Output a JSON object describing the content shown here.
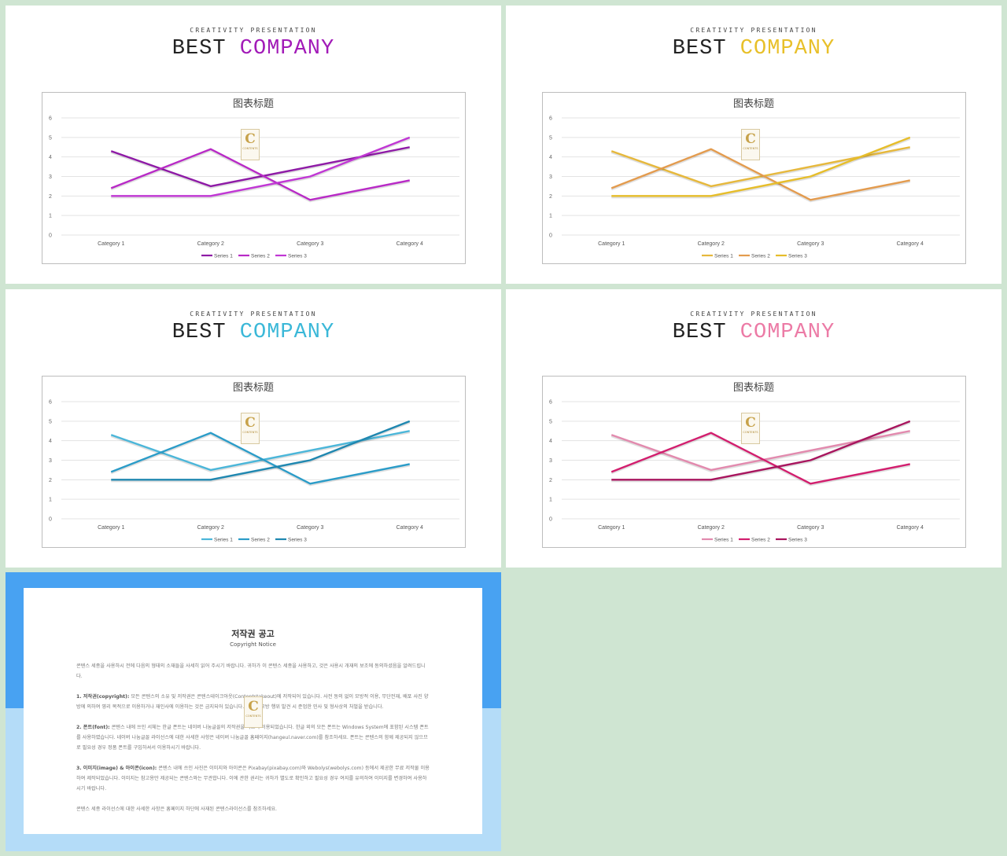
{
  "slides": [
    {
      "kicker": "CREATIVITY PRESENTATION",
      "title_a": "BEST",
      "title_b": "COMPANY",
      "accent": "#a21bb8",
      "chart_data": {
        "type": "line",
        "title": "图表标题",
        "categories": [
          "Category 1",
          "Category 2",
          "Category 3",
          "Category 4"
        ],
        "ylim": [
          0,
          6
        ],
        "yticks": [
          0,
          1,
          2,
          3,
          4,
          5,
          6
        ],
        "grid": true,
        "legend": "bottom",
        "series": [
          {
            "name": "Series 1",
            "values": [
              4.3,
              2.5,
              3.5,
              4.5
            ],
            "color": "#8e1aa6"
          },
          {
            "name": "Series 2",
            "values": [
              2.4,
              4.4,
              1.8,
              2.8
            ],
            "color": "#b82ac6"
          },
          {
            "name": "Series 3",
            "values": [
              2,
              2,
              3,
              5
            ],
            "color": "#c037d4"
          }
        ]
      }
    },
    {
      "kicker": "CREATIVITY PRESENTATION",
      "title_a": "BEST",
      "title_b": "COMPANY",
      "accent": "#e8c02a",
      "chart_data": {
        "type": "line",
        "title": "图表标题",
        "categories": [
          "Category 1",
          "Category 2",
          "Category 3",
          "Category 4"
        ],
        "ylim": [
          0,
          6
        ],
        "yticks": [
          0,
          1,
          2,
          3,
          4,
          5,
          6
        ],
        "grid": true,
        "legend": "bottom",
        "series": [
          {
            "name": "Series 1",
            "values": [
              4.3,
              2.5,
              3.5,
              4.5
            ],
            "color": "#e6b83c"
          },
          {
            "name": "Series 2",
            "values": [
              2.4,
              4.4,
              1.8,
              2.8
            ],
            "color": "#e39b4e"
          },
          {
            "name": "Series 3",
            "values": [
              2,
              2,
              3,
              5
            ],
            "color": "#e6bd2a"
          }
        ]
      }
    },
    {
      "kicker": "CREATIVITY PRESENTATION",
      "title_a": "BEST",
      "title_b": "COMPANY",
      "accent": "#3bb8d8",
      "chart_data": {
        "type": "line",
        "title": "图表标题",
        "categories": [
          "Category 1",
          "Category 2",
          "Category 3",
          "Category 4"
        ],
        "ylim": [
          0,
          6
        ],
        "yticks": [
          0,
          1,
          2,
          3,
          4,
          5,
          6
        ],
        "grid": true,
        "legend": "bottom",
        "series": [
          {
            "name": "Series 1",
            "values": [
              4.3,
              2.5,
              3.5,
              4.5
            ],
            "color": "#4bb6d9"
          },
          {
            "name": "Series 2",
            "values": [
              2.4,
              4.4,
              1.8,
              2.8
            ],
            "color": "#2b9cc8"
          },
          {
            "name": "Series 3",
            "values": [
              2,
              2,
              3,
              5
            ],
            "color": "#1f87b0"
          }
        ]
      }
    },
    {
      "kicker": "CREATIVITY PRESENTATION",
      "title_a": "BEST",
      "title_b": "COMPANY",
      "accent": "#ec7ba6",
      "chart_data": {
        "type": "line",
        "title": "图表标题",
        "categories": [
          "Category 1",
          "Category 2",
          "Category 3",
          "Category 4"
        ],
        "ylim": [
          0,
          6
        ],
        "yticks": [
          0,
          1,
          2,
          3,
          4,
          5,
          6
        ],
        "grid": true,
        "legend": "bottom",
        "series": [
          {
            "name": "Series 1",
            "values": [
              4.3,
              2.5,
              3.5,
              4.5
            ],
            "color": "#e28aae"
          },
          {
            "name": "Series 2",
            "values": [
              2.4,
              4.4,
              1.8,
              2.8
            ],
            "color": "#d21e6e"
          },
          {
            "name": "Series 3",
            "values": [
              2,
              2,
              3,
              5
            ],
            "color": "#a8155e"
          }
        ]
      }
    }
  ],
  "notice": {
    "title": "저작권 공고",
    "subtitle": "Copyright Notice",
    "intro": "콘텐스 세종을 사용하시 전에 다음의 형태의 소재들을 사세히 읽어 주시기 바랍니다. 귀하가 이 콘텐스 세종을 사용하고, 것은 사용시 개재의 보조에 동의하셨음을 알려드립니다.",
    "p1_head": "1. 저작권(copyright):",
    "p1": "모든 콘텐스의 소유 및 저작권은 콘텐스테이크아웃(Contentstakeout)에 저작되어 있습니다. 사전 동의 없이 모방적 이용, 무단전재, 배포 사진 양방에 의하여 영리 목적으로 이용하거나 재인사에 이용하는 것은 금지되어 있습니다. 이러한 모방 행위 발견 시 준엄한 민사 및 형사상의 처벌을 받습니다.",
    "p2_head": "2. 폰트(font):",
    "p2": "콘텐스 내에 쓰인 서체는 한글 폰트는 네이버 나눔글꼴의 저작권을 따르며 이용되었습니다. 한글 외의 모든 폰트는 Windows System에 포함된 시스템 폰트를 사용하였습니다. 네이버 나눔글꼴 라이선스에 대한 사세한 사항은 네이버 나눔글꼴 홈페이지(hangeul.naver.com)를 참조하세요. 폰트는 콘텐스의 함께 제공되지 않으므로 필요성 경우 정품 폰트를 구입하셔서 이용하시기 바랍니다.",
    "p3_head": "3. 이미지(image) & 아이콘(icon):",
    "p3": "콘텐스 내에 쓰인 사진은 이미지와 아이콘은 Pixabay(pixabay.com)와 Webolys(webolys.com) 등에서 제공한 무료 저작물 이용하여 제작되었습니다. 이미지는 참고용만 제공되는 콘텐스와는 무관합니다. 이에 관한 권리는 귀하가 별도로 확인하고 필요성 경우 여지를 유의하여 이미지를 변경하여 사용하시기 바랍니다.",
    "outro": "콘텐스 세종 라이선스에 대한 사세한 사항은 홈페이지 하단에 사재된 콘텐스라이선스를 참조하세요."
  }
}
